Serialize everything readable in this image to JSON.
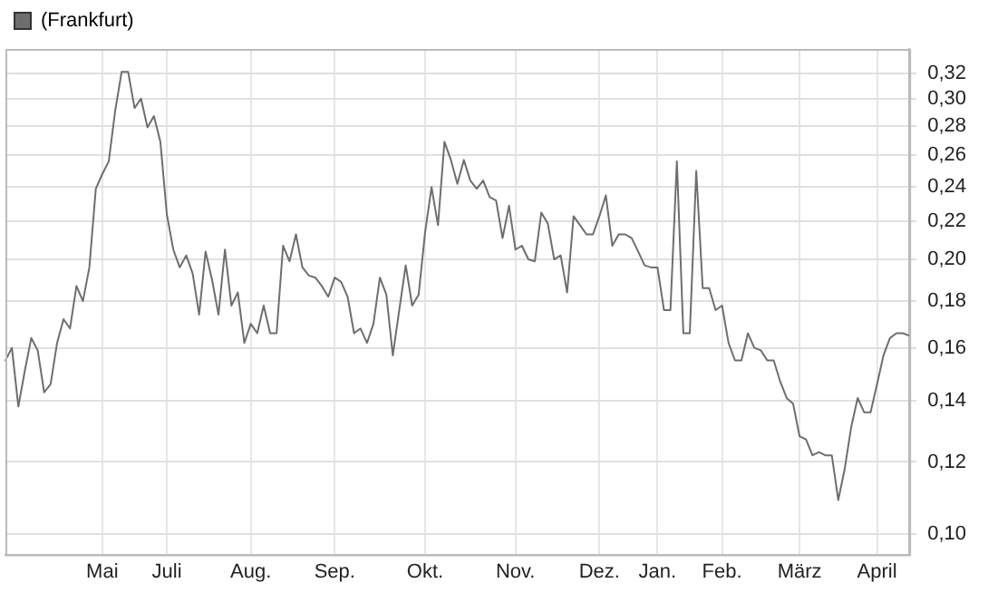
{
  "chart_data": {
    "type": "line",
    "categories": [
      null,
      null,
      null,
      null,
      null,
      null,
      null,
      null,
      null,
      null,
      null,
      null,
      null,
      null,
      null,
      "Mai",
      null,
      null,
      null,
      null,
      null,
      null,
      null,
      null,
      null,
      "Juli",
      null,
      null,
      null,
      null,
      null,
      null,
      null,
      null,
      null,
      null,
      null,
      null,
      "Aug.",
      null,
      null,
      null,
      null,
      null,
      null,
      null,
      null,
      null,
      null,
      null,
      null,
      "Sep.",
      null,
      null,
      null,
      null,
      null,
      null,
      null,
      null,
      null,
      null,
      null,
      null,
      null,
      "Okt.",
      null,
      null,
      null,
      null,
      null,
      null,
      null,
      null,
      null,
      null,
      null,
      null,
      null,
      "Nov.",
      null,
      null,
      null,
      null,
      null,
      null,
      null,
      null,
      null,
      null,
      null,
      null,
      "Dez.",
      null,
      null,
      null,
      null,
      null,
      null,
      null,
      null,
      "Jan.",
      null,
      null,
      null,
      null,
      null,
      null,
      null,
      null,
      null,
      "Feb.",
      null,
      null,
      null,
      null,
      null,
      null,
      null,
      null,
      null,
      null,
      null,
      "März",
      null,
      null,
      null,
      null,
      null,
      null,
      null,
      null,
      null,
      null,
      null,
      "April",
      null,
      null,
      null,
      null,
      null
    ],
    "series": [
      {
        "name": "(Frankfurt)",
        "color": "#6e6e6e",
        "values": [
          0.155,
          0.16,
          0.138,
          0.151,
          0.164,
          0.159,
          0.143,
          0.146,
          0.162,
          0.172,
          0.168,
          0.187,
          0.18,
          0.196,
          0.239,
          0.248,
          0.256,
          0.291,
          0.321,
          0.321,
          0.293,
          0.3,
          0.279,
          0.287,
          0.269,
          0.224,
          0.205,
          0.196,
          0.202,
          0.193,
          0.174,
          0.204,
          0.19,
          0.174,
          0.205,
          0.178,
          0.184,
          0.162,
          0.17,
          0.166,
          0.178,
          0.166,
          0.166,
          0.207,
          0.199,
          0.213,
          0.196,
          0.192,
          0.191,
          0.187,
          0.182,
          0.191,
          0.189,
          0.182,
          0.166,
          0.168,
          0.162,
          0.17,
          0.191,
          0.183,
          0.157,
          0.176,
          0.197,
          0.178,
          0.183,
          0.214,
          0.24,
          0.218,
          0.269,
          0.257,
          0.242,
          0.257,
          0.244,
          0.239,
          0.244,
          0.234,
          0.232,
          0.211,
          0.229,
          0.205,
          0.207,
          0.2,
          0.199,
          0.225,
          0.219,
          0.2,
          0.202,
          0.184,
          0.223,
          0.218,
          0.213,
          0.213,
          0.223,
          0.235,
          0.207,
          0.213,
          0.213,
          0.211,
          0.204,
          0.197,
          0.196,
          0.196,
          0.176,
          0.176,
          0.256,
          0.166,
          0.166,
          0.25,
          0.186,
          0.186,
          0.176,
          0.178,
          0.162,
          0.155,
          0.155,
          0.166,
          0.16,
          0.159,
          0.155,
          0.155,
          0.147,
          0.141,
          0.139,
          0.128,
          0.127,
          0.122,
          0.123,
          0.122,
          0.122,
          0.109,
          0.118,
          0.131,
          0.141,
          0.136,
          0.136,
          0.146,
          0.157,
          0.164,
          0.166,
          0.166,
          0.165
        ]
      }
    ],
    "ylim": [
      0.095,
      0.34
    ],
    "yticks": [
      {
        "value": 0.1,
        "label": "0,10"
      },
      {
        "value": 0.12,
        "label": "0,12"
      },
      {
        "value": 0.14,
        "label": "0,14"
      },
      {
        "value": 0.16,
        "label": "0,16"
      },
      {
        "value": 0.18,
        "label": "0,18"
      },
      {
        "value": 0.2,
        "label": "0,20"
      },
      {
        "value": 0.22,
        "label": "0,22"
      },
      {
        "value": 0.24,
        "label": "0,24"
      },
      {
        "value": 0.26,
        "label": "0,26"
      },
      {
        "value": 0.28,
        "label": "0,28"
      },
      {
        "value": 0.3,
        "label": "0,30"
      },
      {
        "value": 0.32,
        "label": "0,32"
      }
    ],
    "log": true,
    "grid": true,
    "legend": "top left",
    "marker": "none",
    "line_style": "solid"
  }
}
